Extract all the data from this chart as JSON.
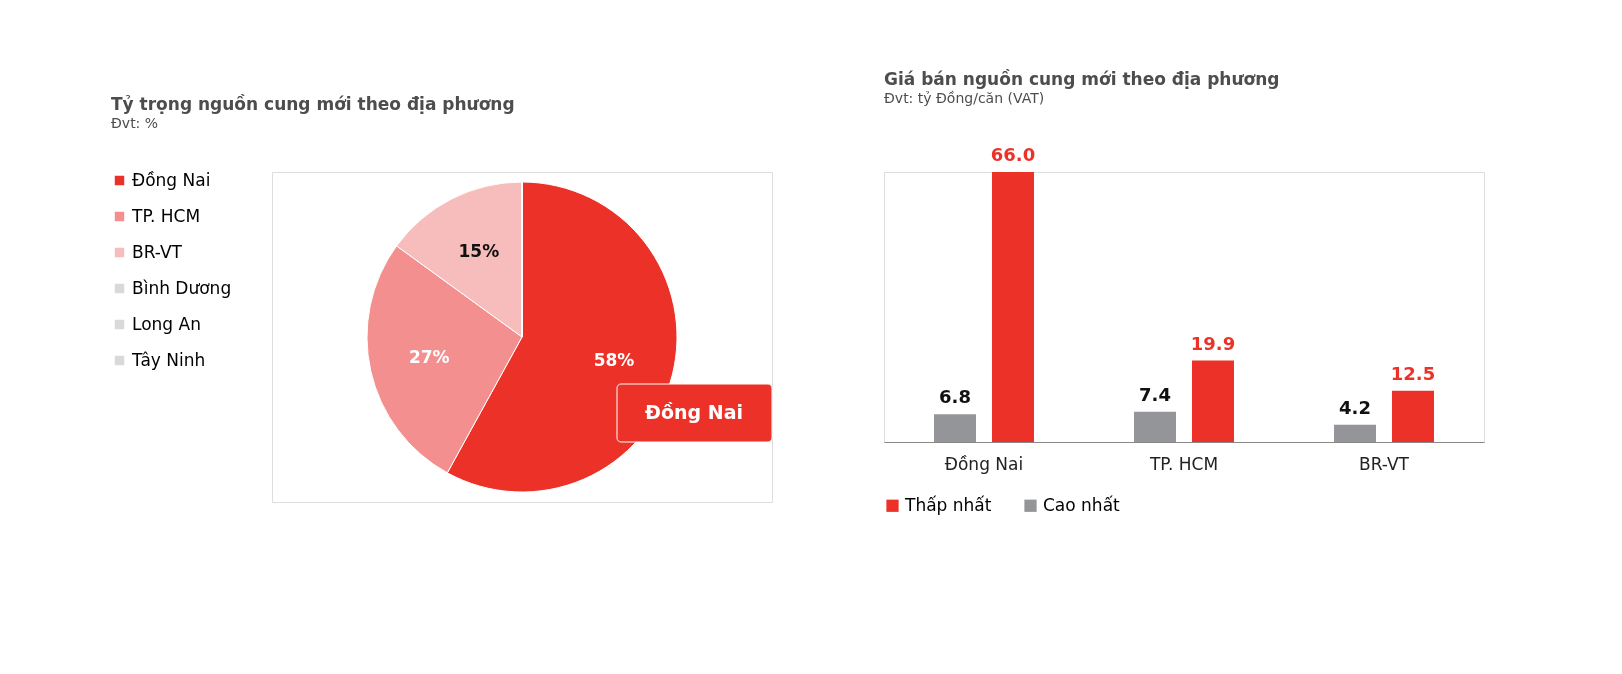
{
  "chart_data": [
    {
      "type": "pie",
      "title": "Tỷ trọng nguồn cung mới theo địa phương",
      "subtitle": "Đvt: %",
      "categories": [
        "Đồng Nai",
        "TP. HCM",
        "BR-VT",
        "Bình Dương",
        "Long An",
        "Tây Ninh"
      ],
      "values": [
        58,
        27,
        15,
        0,
        0,
        0
      ],
      "colors": [
        "#ec3128",
        "#f48f8f",
        "#f7bcbc",
        "#d9d9d9",
        "#d9d9d9",
        "#d9d9d9"
      ],
      "value_labels": [
        "58%",
        "27%",
        "15%",
        null,
        null,
        null
      ],
      "annotations": [
        "Đồng Nai"
      ],
      "legend": "left"
    },
    {
      "type": "bar",
      "title": "Giá bán nguồn cung mới theo địa phương",
      "subtitle": "Đvt: tỷ Đồng/căn (VAT)",
      "categories": [
        "Đồng Nai",
        "TP. HCM",
        "BR-VT"
      ],
      "series": [
        {
          "name": "Cao nhất",
          "color": "#939598",
          "values": [
            6.8,
            7.4,
            4.2
          ],
          "value_labels": [
            "6.8",
            "7.4",
            "4.2"
          ]
        },
        {
          "name": "Thấp nhất",
          "color": "#ec3128",
          "values": [
            66.0,
            19.9,
            12.5
          ],
          "value_labels": [
            "66.0",
            "19.9",
            "12.5"
          ]
        }
      ],
      "legend": "bottom",
      "grid": false
    }
  ]
}
